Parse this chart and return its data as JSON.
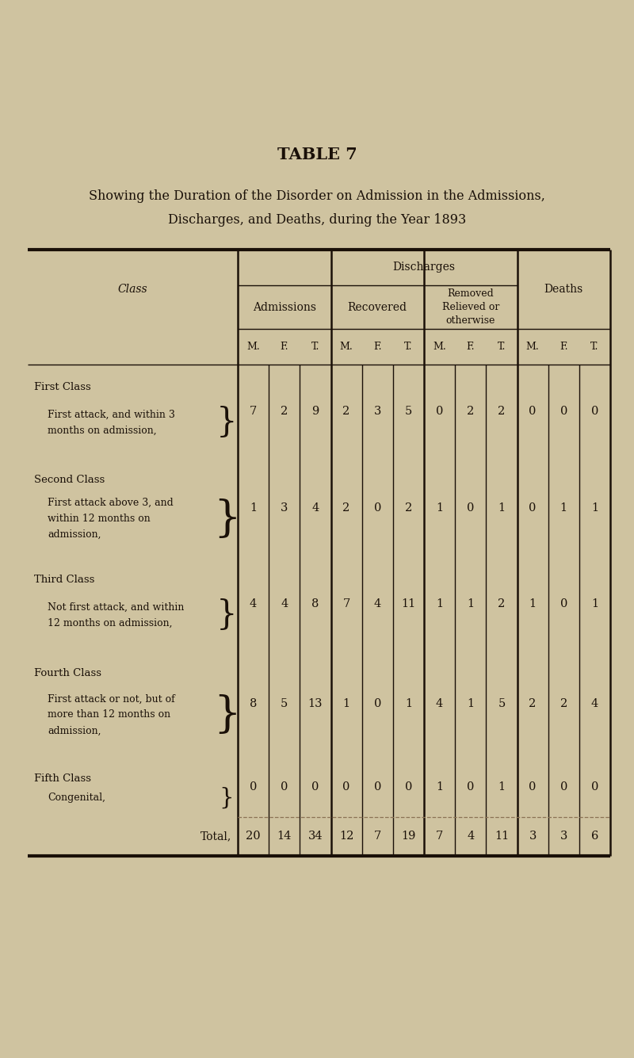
{
  "title": "TABLE 7",
  "subtitle_line1": "Showing the Duration of the Disorder on Admission in the Admissions,",
  "subtitle_line2": "Discharges, and Deaths, during the Year 1893",
  "background_color": "#cfc3a0",
  "text_color": "#1a1008",
  "col_header_admissions": "Admissions",
  "col_header_discharges": "Discharges",
  "col_header_recovered": "Recovered",
  "col_header_removed": "Removed\nRelieved or\notherwise",
  "col_header_deaths": "Deaths",
  "col_header_class": "Class",
  "subheaders": [
    "M.",
    "F.",
    "T.",
    "M.",
    "F.",
    "T.",
    "M.",
    "F.",
    "T.",
    "M.",
    "F.",
    "T."
  ],
  "rows": [
    {
      "class_title": "First Class",
      "class_desc_lines": [
        "First attack, and within 3",
        "months on admission,"
      ],
      "values": [
        "7",
        "2",
        "9",
        "2",
        "3",
        "5",
        "0",
        "2",
        "2",
        "0",
        "0",
        "0"
      ]
    },
    {
      "class_title": "Second Class",
      "class_desc_lines": [
        "First attack above 3, and",
        "within 12 months on",
        "admission,"
      ],
      "values": [
        "1",
        "3",
        "4",
        "2",
        "0",
        "2",
        "1",
        "0",
        "1",
        "0",
        "1",
        "1"
      ]
    },
    {
      "class_title": "Third Class",
      "class_desc_lines": [
        "Not first attack, and within",
        "12 months on admission,"
      ],
      "values": [
        "4",
        "4",
        "8",
        "7",
        "4",
        "11",
        "1",
        "1",
        "2",
        "1",
        "0",
        "1"
      ]
    },
    {
      "class_title": "Fourth Class",
      "class_desc_lines": [
        "First attack or not, but of",
        "more than 12 months on",
        "admission,"
      ],
      "values": [
        "8",
        "5",
        "13",
        "1",
        "0",
        "1",
        "4",
        "1",
        "5",
        "2",
        "2",
        "4"
      ]
    },
    {
      "class_title": "Fifth Class",
      "class_desc_lines": [
        "Congenital,"
      ],
      "values": [
        "0",
        "0",
        "0",
        "0",
        "0",
        "0",
        "1",
        "0",
        "1",
        "0",
        "0",
        "0"
      ]
    }
  ],
  "total_label": "Total,",
  "total_values": [
    "20",
    "14",
    "34",
    "12",
    "7",
    "19",
    "7",
    "4",
    "11",
    "3",
    "3",
    "6"
  ]
}
